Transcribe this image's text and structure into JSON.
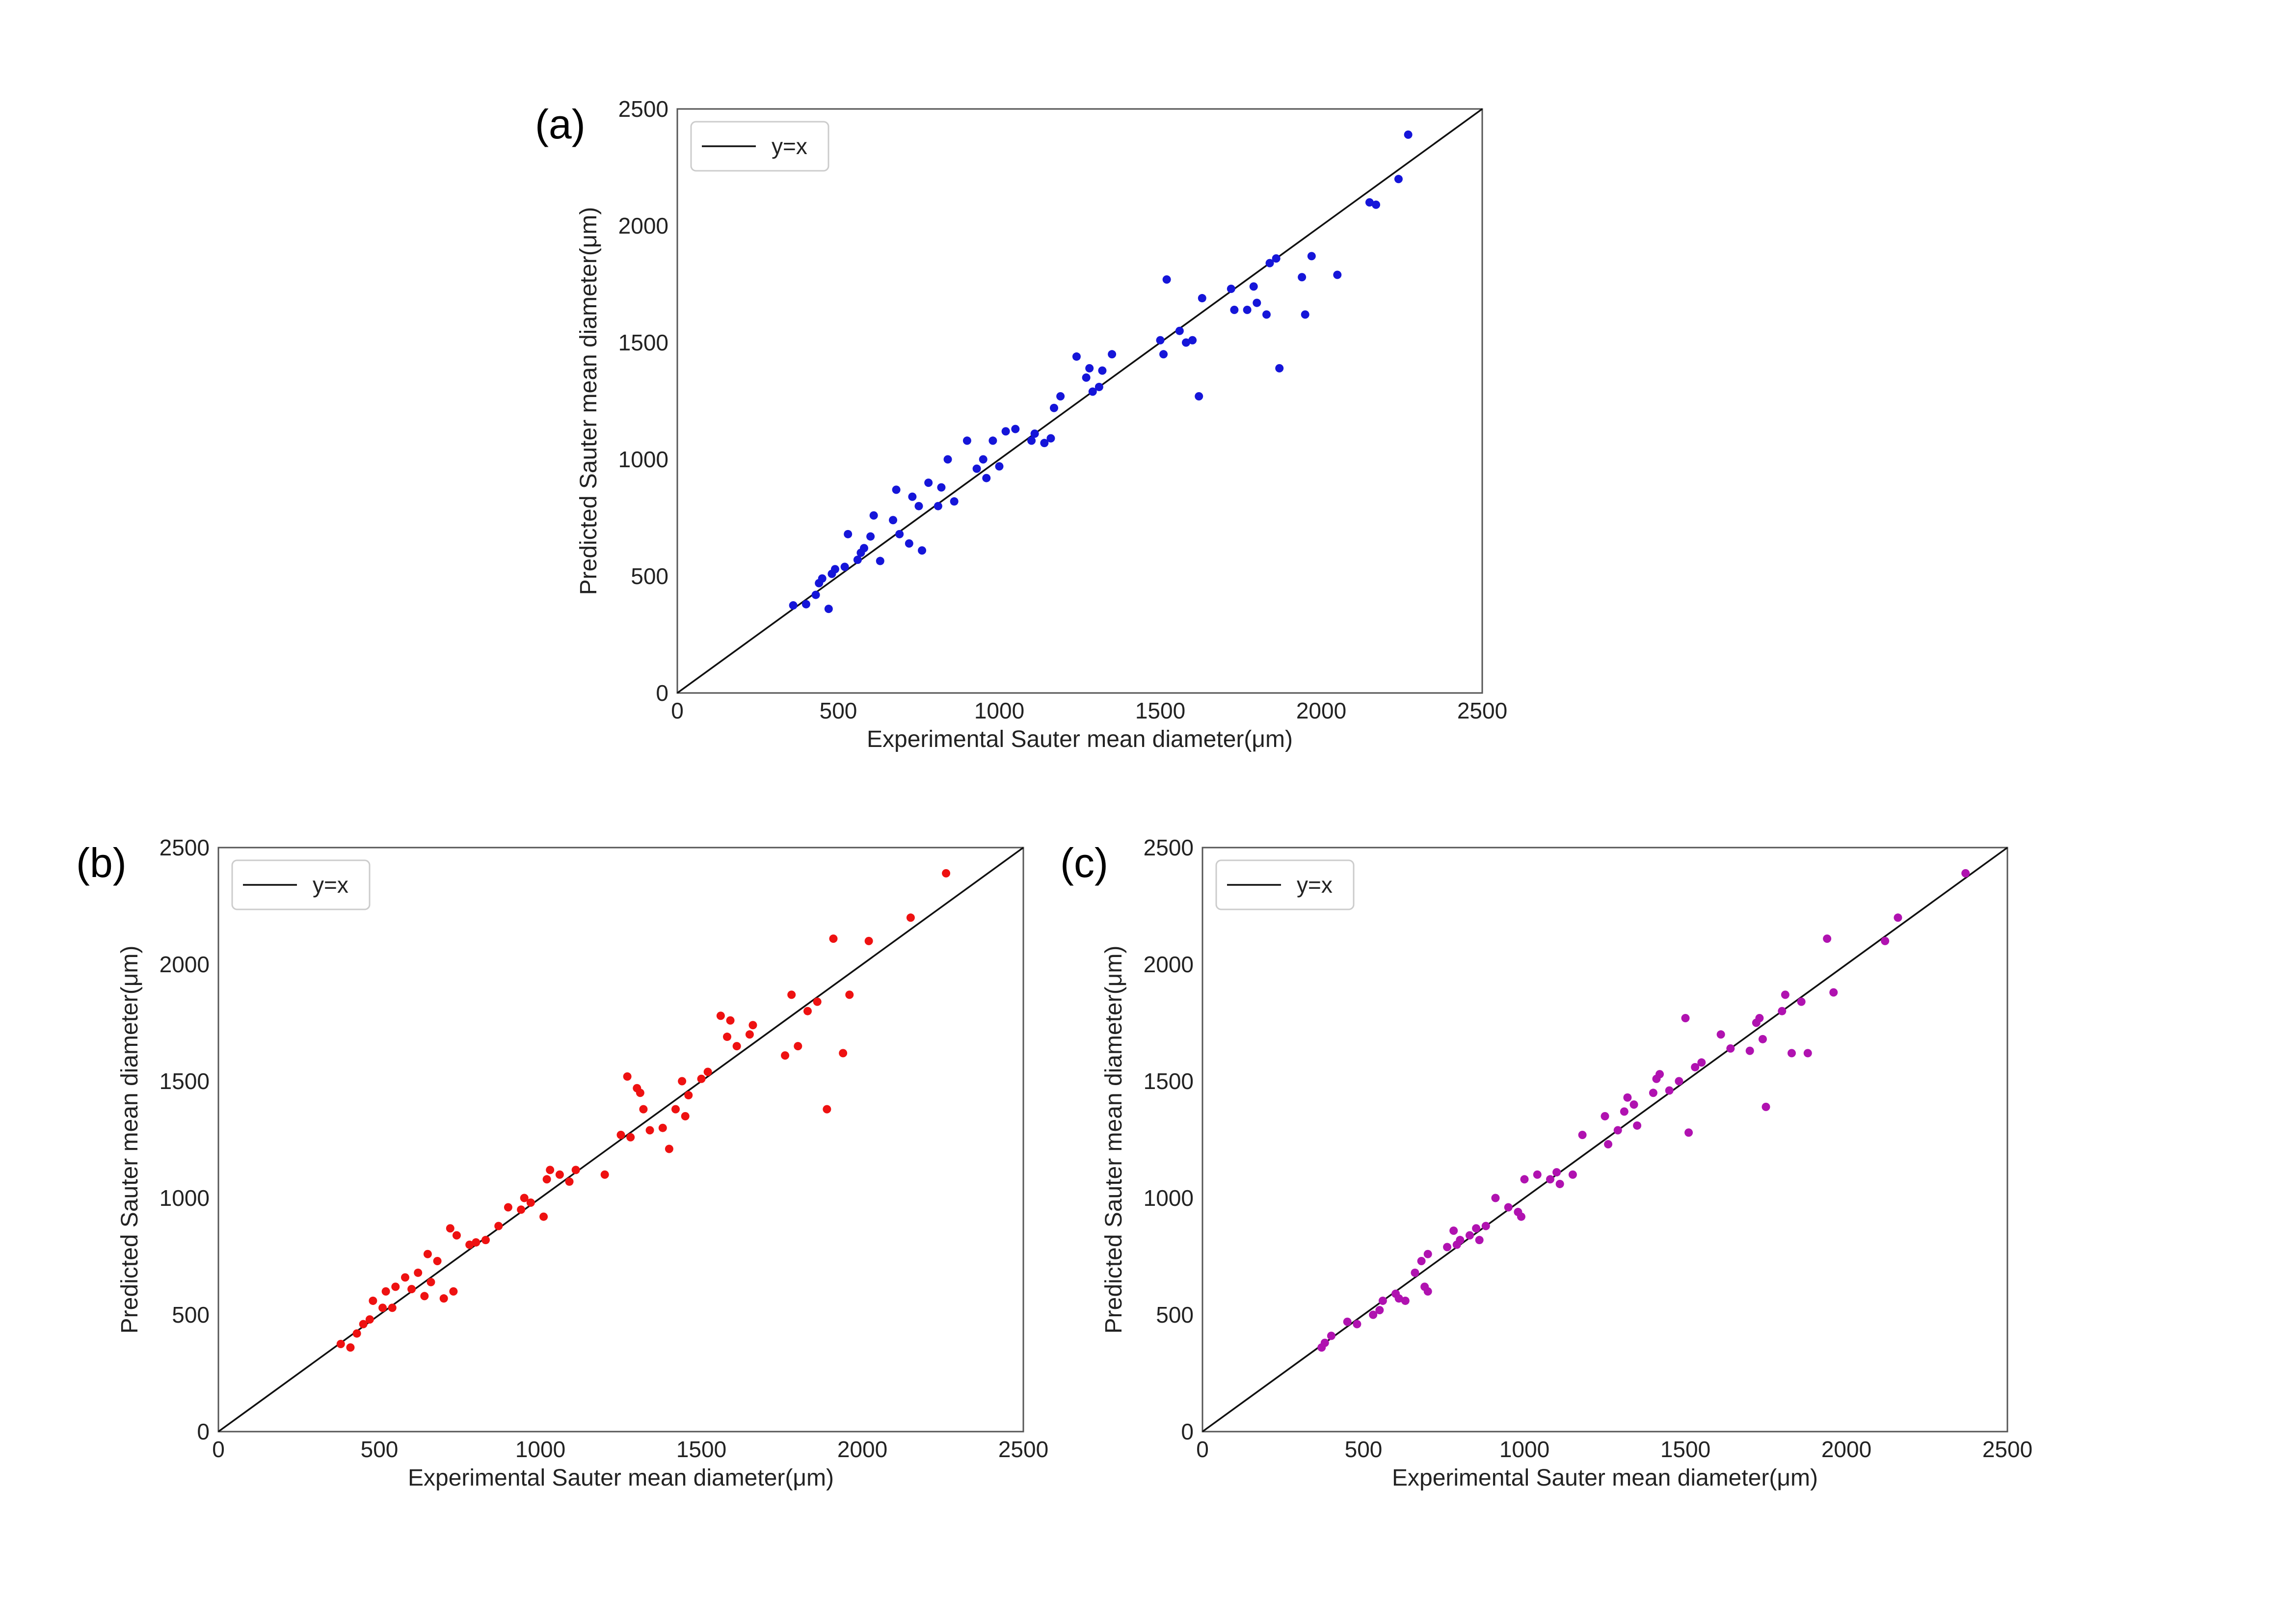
{
  "chart_data": [
    {
      "type": "scatter",
      "panel_label": "(a)",
      "xlabel": "Experimental Sauter mean diameter(μm)",
      "ylabel": "Predicted Sauter mean diameter(μm)",
      "xlim": [
        0,
        2500
      ],
      "ylim": [
        0,
        2500
      ],
      "xticks": [
        0,
        500,
        1000,
        1500,
        2000,
        2500
      ],
      "yticks": [
        0,
        500,
        1000,
        1500,
        2000,
        2500
      ],
      "grid": false,
      "legend_position": "top-left",
      "legend": [
        "y=x"
      ],
      "reference_line": "y=x",
      "marker_color": "#1515d9",
      "points": [
        [
          360,
          375
        ],
        [
          400,
          380
        ],
        [
          430,
          420
        ],
        [
          440,
          470
        ],
        [
          450,
          490
        ],
        [
          470,
          360
        ],
        [
          480,
          510
        ],
        [
          490,
          530
        ],
        [
          520,
          540
        ],
        [
          530,
          680
        ],
        [
          560,
          570
        ],
        [
          570,
          600
        ],
        [
          580,
          620
        ],
        [
          600,
          670
        ],
        [
          610,
          760
        ],
        [
          630,
          565
        ],
        [
          670,
          740
        ],
        [
          680,
          870
        ],
        [
          690,
          680
        ],
        [
          720,
          640
        ],
        [
          730,
          840
        ],
        [
          750,
          800
        ],
        [
          760,
          610
        ],
        [
          780,
          900
        ],
        [
          810,
          800
        ],
        [
          820,
          880
        ],
        [
          840,
          1000
        ],
        [
          860,
          820
        ],
        [
          900,
          1080
        ],
        [
          930,
          960
        ],
        [
          950,
          1000
        ],
        [
          960,
          920
        ],
        [
          980,
          1080
        ],
        [
          1000,
          970
        ],
        [
          1020,
          1120
        ],
        [
          1050,
          1130
        ],
        [
          1100,
          1080
        ],
        [
          1110,
          1110
        ],
        [
          1140,
          1070
        ],
        [
          1160,
          1090
        ],
        [
          1170,
          1220
        ],
        [
          1190,
          1270
        ],
        [
          1240,
          1440
        ],
        [
          1270,
          1350
        ],
        [
          1280,
          1390
        ],
        [
          1290,
          1290
        ],
        [
          1310,
          1310
        ],
        [
          1320,
          1380
        ],
        [
          1350,
          1450
        ],
        [
          1500,
          1510
        ],
        [
          1510,
          1450
        ],
        [
          1520,
          1770
        ],
        [
          1560,
          1550
        ],
        [
          1580,
          1500
        ],
        [
          1600,
          1510
        ],
        [
          1620,
          1270
        ],
        [
          1630,
          1690
        ],
        [
          1720,
          1730
        ],
        [
          1730,
          1640
        ],
        [
          1770,
          1640
        ],
        [
          1790,
          1740
        ],
        [
          1800,
          1670
        ],
        [
          1830,
          1620
        ],
        [
          1840,
          1840
        ],
        [
          1860,
          1860
        ],
        [
          1870,
          1390
        ],
        [
          1940,
          1780
        ],
        [
          1950,
          1620
        ],
        [
          1970,
          1870
        ],
        [
          2050,
          1790
        ],
        [
          2150,
          2100
        ],
        [
          2170,
          2090
        ],
        [
          2240,
          2200
        ],
        [
          2270,
          2390
        ]
      ]
    },
    {
      "type": "scatter",
      "panel_label": "(b)",
      "xlabel": "Experimental Sauter mean diameter(μm)",
      "ylabel": "Predicted Sauter mean diameter(μm)",
      "xlim": [
        0,
        2500
      ],
      "ylim": [
        0,
        2500
      ],
      "xticks": [
        0,
        500,
        1000,
        1500,
        2000,
        2500
      ],
      "yticks": [
        0,
        500,
        1000,
        1500,
        2000,
        2500
      ],
      "grid": false,
      "legend_position": "top-left",
      "legend": [
        "y=x"
      ],
      "reference_line": "y=x",
      "marker_color": "#ee1111",
      "points": [
        [
          380,
          375
        ],
        [
          410,
          360
        ],
        [
          430,
          420
        ],
        [
          450,
          460
        ],
        [
          470,
          480
        ],
        [
          480,
          560
        ],
        [
          510,
          530
        ],
        [
          520,
          600
        ],
        [
          540,
          530
        ],
        [
          550,
          620
        ],
        [
          580,
          660
        ],
        [
          600,
          610
        ],
        [
          620,
          680
        ],
        [
          640,
          580
        ],
        [
          650,
          760
        ],
        [
          660,
          640
        ],
        [
          680,
          730
        ],
        [
          700,
          570
        ],
        [
          720,
          870
        ],
        [
          730,
          600
        ],
        [
          740,
          840
        ],
        [
          780,
          800
        ],
        [
          800,
          810
        ],
        [
          830,
          820
        ],
        [
          870,
          880
        ],
        [
          900,
          960
        ],
        [
          940,
          950
        ],
        [
          950,
          1000
        ],
        [
          970,
          980
        ],
        [
          1010,
          920
        ],
        [
          1020,
          1080
        ],
        [
          1030,
          1120
        ],
        [
          1060,
          1100
        ],
        [
          1090,
          1070
        ],
        [
          1110,
          1120
        ],
        [
          1200,
          1100
        ],
        [
          1250,
          1270
        ],
        [
          1270,
          1520
        ],
        [
          1280,
          1260
        ],
        [
          1300,
          1470
        ],
        [
          1310,
          1450
        ],
        [
          1320,
          1380
        ],
        [
          1340,
          1290
        ],
        [
          1380,
          1300
        ],
        [
          1400,
          1210
        ],
        [
          1420,
          1380
        ],
        [
          1440,
          1500
        ],
        [
          1450,
          1350
        ],
        [
          1460,
          1440
        ],
        [
          1500,
          1510
        ],
        [
          1520,
          1540
        ],
        [
          1560,
          1780
        ],
        [
          1580,
          1690
        ],
        [
          1590,
          1760
        ],
        [
          1610,
          1650
        ],
        [
          1650,
          1700
        ],
        [
          1660,
          1740
        ],
        [
          1760,
          1610
        ],
        [
          1780,
          1870
        ],
        [
          1800,
          1650
        ],
        [
          1830,
          1800
        ],
        [
          1860,
          1840
        ],
        [
          1890,
          1380
        ],
        [
          1910,
          2110
        ],
        [
          1940,
          1620
        ],
        [
          1960,
          1870
        ],
        [
          2020,
          2100
        ],
        [
          2150,
          2200
        ],
        [
          2260,
          2390
        ]
      ]
    },
    {
      "type": "scatter",
      "panel_label": "(c)",
      "xlabel": "Experimental Sauter mean diameter(μm)",
      "ylabel": "Predicted Sauter mean diameter(μm)",
      "xlim": [
        0,
        2500
      ],
      "ylim": [
        0,
        2500
      ],
      "xticks": [
        0,
        500,
        1000,
        1500,
        2000,
        2500
      ],
      "yticks": [
        0,
        500,
        1000,
        1500,
        2000,
        2500
      ],
      "grid": false,
      "legend_position": "top-left",
      "legend": [
        "y=x"
      ],
      "reference_line": "y=x",
      "marker_color": "#b012b0",
      "points": [
        [
          370,
          360
        ],
        [
          380,
          380
        ],
        [
          400,
          410
        ],
        [
          450,
          470
        ],
        [
          480,
          460
        ],
        [
          530,
          500
        ],
        [
          550,
          520
        ],
        [
          560,
          560
        ],
        [
          600,
          590
        ],
        [
          610,
          570
        ],
        [
          630,
          560
        ],
        [
          660,
          680
        ],
        [
          680,
          730
        ],
        [
          690,
          620
        ],
        [
          700,
          760
        ],
        [
          700,
          600
        ],
        [
          760,
          790
        ],
        [
          780,
          860
        ],
        [
          790,
          800
        ],
        [
          800,
          820
        ],
        [
          830,
          840
        ],
        [
          850,
          870
        ],
        [
          860,
          820
        ],
        [
          880,
          880
        ],
        [
          910,
          1000
        ],
        [
          950,
          960
        ],
        [
          980,
          940
        ],
        [
          990,
          920
        ],
        [
          1000,
          1080
        ],
        [
          1040,
          1100
        ],
        [
          1080,
          1080
        ],
        [
          1100,
          1110
        ],
        [
          1110,
          1060
        ],
        [
          1150,
          1100
        ],
        [
          1180,
          1270
        ],
        [
          1250,
          1350
        ],
        [
          1260,
          1230
        ],
        [
          1290,
          1290
        ],
        [
          1310,
          1370
        ],
        [
          1320,
          1430
        ],
        [
          1340,
          1400
        ],
        [
          1350,
          1310
        ],
        [
          1400,
          1450
        ],
        [
          1410,
          1510
        ],
        [
          1420,
          1530
        ],
        [
          1450,
          1460
        ],
        [
          1480,
          1500
        ],
        [
          1500,
          1770
        ],
        [
          1510,
          1280
        ],
        [
          1530,
          1560
        ],
        [
          1550,
          1580
        ],
        [
          1610,
          1700
        ],
        [
          1640,
          1640
        ],
        [
          1700,
          1630
        ],
        [
          1720,
          1750
        ],
        [
          1730,
          1770
        ],
        [
          1740,
          1680
        ],
        [
          1750,
          1390
        ],
        [
          1800,
          1800
        ],
        [
          1810,
          1870
        ],
        [
          1830,
          1620
        ],
        [
          1860,
          1840
        ],
        [
          1880,
          1620
        ],
        [
          1940,
          2110
        ],
        [
          1960,
          1880
        ],
        [
          2120,
          2100
        ],
        [
          2160,
          2200
        ],
        [
          2370,
          2390
        ]
      ]
    }
  ]
}
